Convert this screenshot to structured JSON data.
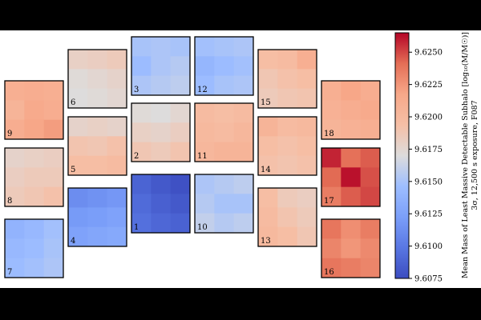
{
  "chart_data": {
    "type": "heatmap",
    "colorbar": {
      "label_line1": "Mean Mass of Least Massive Detectable Subhalo [log₁₀(M/M☉)]",
      "label_line2": "3σ, 12,500 s exposure, F087",
      "range": [
        9.6075,
        9.6265
      ],
      "ticks": [
        "9.6075",
        "9.6100",
        "9.6125",
        "9.6150",
        "9.6175",
        "9.6200",
        "9.6225",
        "9.6250"
      ],
      "colormap": "coolwarm"
    },
    "detectors": [
      {
        "id": "1",
        "values": [
          [
            9.6088,
            9.6082,
            9.6078
          ],
          [
            9.6092,
            9.6086,
            9.6082
          ],
          [
            9.6095,
            9.609,
            9.6087
          ]
        ]
      },
      {
        "id": "2",
        "values": [
          [
            9.6172,
            9.617,
            9.6175
          ],
          [
            9.618,
            9.6178,
            9.6182
          ],
          [
            9.6188,
            9.6185,
            9.619
          ]
        ]
      },
      {
        "id": "3",
        "values": [
          [
            9.615,
            9.6152,
            9.615
          ],
          [
            9.6145,
            9.6152,
            9.6155
          ],
          [
            9.6152,
            9.6155,
            9.6158
          ]
        ]
      },
      {
        "id": "4",
        "values": [
          [
            9.6112,
            9.6115,
            9.6118
          ],
          [
            9.612,
            9.6122,
            9.6125
          ],
          [
            9.6125,
            9.6128,
            9.613
          ]
        ]
      },
      {
        "id": "5",
        "values": [
          [
            9.6178,
            9.618,
            9.6178
          ],
          [
            9.619,
            9.6188,
            9.6192
          ],
          [
            9.6195,
            9.6195,
            9.6198
          ]
        ]
      },
      {
        "id": "6",
        "values": [
          [
            9.618,
            9.6182,
            9.6185
          ],
          [
            9.6172,
            9.6175,
            9.6178
          ],
          [
            9.617,
            9.6172,
            9.6175
          ]
        ]
      },
      {
        "id": "7",
        "values": [
          [
            9.6138,
            9.6142,
            9.6148
          ],
          [
            9.6142,
            9.6145,
            9.615
          ],
          [
            9.6145,
            9.6148,
            9.6152
          ]
        ]
      },
      {
        "id": "8",
        "values": [
          [
            9.6178,
            9.618,
            9.6182
          ],
          [
            9.6182,
            9.6185,
            9.6185
          ],
          [
            9.6185,
            9.6188,
            9.6192
          ]
        ]
      },
      {
        "id": "9",
        "values": [
          [
            9.621,
            9.6212,
            9.621
          ],
          [
            9.6205,
            9.6215,
            9.6212
          ],
          [
            9.6212,
            9.6218,
            9.6222
          ]
        ]
      },
      {
        "id": "10",
        "values": [
          [
            9.6152,
            9.6155,
            9.6158
          ],
          [
            9.6155,
            9.615,
            9.615
          ],
          [
            9.616,
            9.6155,
            9.6158
          ]
        ]
      },
      {
        "id": "11",
        "values": [
          [
            9.6198,
            9.6195,
            9.6198
          ],
          [
            9.62,
            9.6198,
            9.6202
          ],
          [
            9.6202,
            9.6205,
            9.6205
          ]
        ]
      },
      {
        "id": "12",
        "values": [
          [
            9.6148,
            9.615,
            9.6152
          ],
          [
            9.614,
            9.6145,
            9.6148
          ],
          [
            9.6145,
            9.615,
            9.6152
          ]
        ]
      },
      {
        "id": "13",
        "values": [
          [
            9.6195,
            9.6185,
            9.6182
          ],
          [
            9.6198,
            9.619,
            9.6185
          ],
          [
            9.62,
            9.6195,
            9.6188
          ]
        ]
      },
      {
        "id": "14",
        "values": [
          [
            9.6205,
            9.6198,
            9.62
          ],
          [
            9.6195,
            9.6192,
            9.6195
          ],
          [
            9.6192,
            9.619,
            9.6192
          ]
        ]
      },
      {
        "id": "15",
        "values": [
          [
            9.6195,
            9.6198,
            9.621
          ],
          [
            9.6188,
            9.6192,
            9.6195
          ],
          [
            9.6185,
            9.6188,
            9.619
          ]
        ]
      },
      {
        "id": "16",
        "values": [
          [
            9.6238,
            9.6228,
            9.6235
          ],
          [
            9.6232,
            9.6225,
            9.623
          ],
          [
            9.6238,
            9.6235,
            9.6232
          ]
        ]
      },
      {
        "id": "17",
        "values": [
          [
            9.6258,
            9.624,
            9.6245
          ],
          [
            9.6242,
            9.6262,
            9.6248
          ],
          [
            9.6235,
            9.6245,
            9.625
          ]
        ]
      },
      {
        "id": "18",
        "values": [
          [
            9.621,
            9.6218,
            9.6212
          ],
          [
            9.6208,
            9.6212,
            9.6215
          ],
          [
            9.6205,
            9.6208,
            9.621
          ]
        ]
      }
    ]
  }
}
